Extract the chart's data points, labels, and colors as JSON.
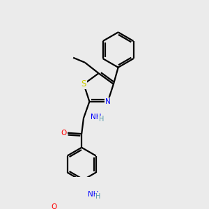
{
  "bg_color": "#ebebeb",
  "bond_color": "#000000",
  "bond_width": 1.6,
  "atom_colors": {
    "N": "#0000ff",
    "O": "#ff0000",
    "S": "#cccc00",
    "C": "#000000",
    "H": "#5599aa"
  },
  "font_size": 7.5
}
